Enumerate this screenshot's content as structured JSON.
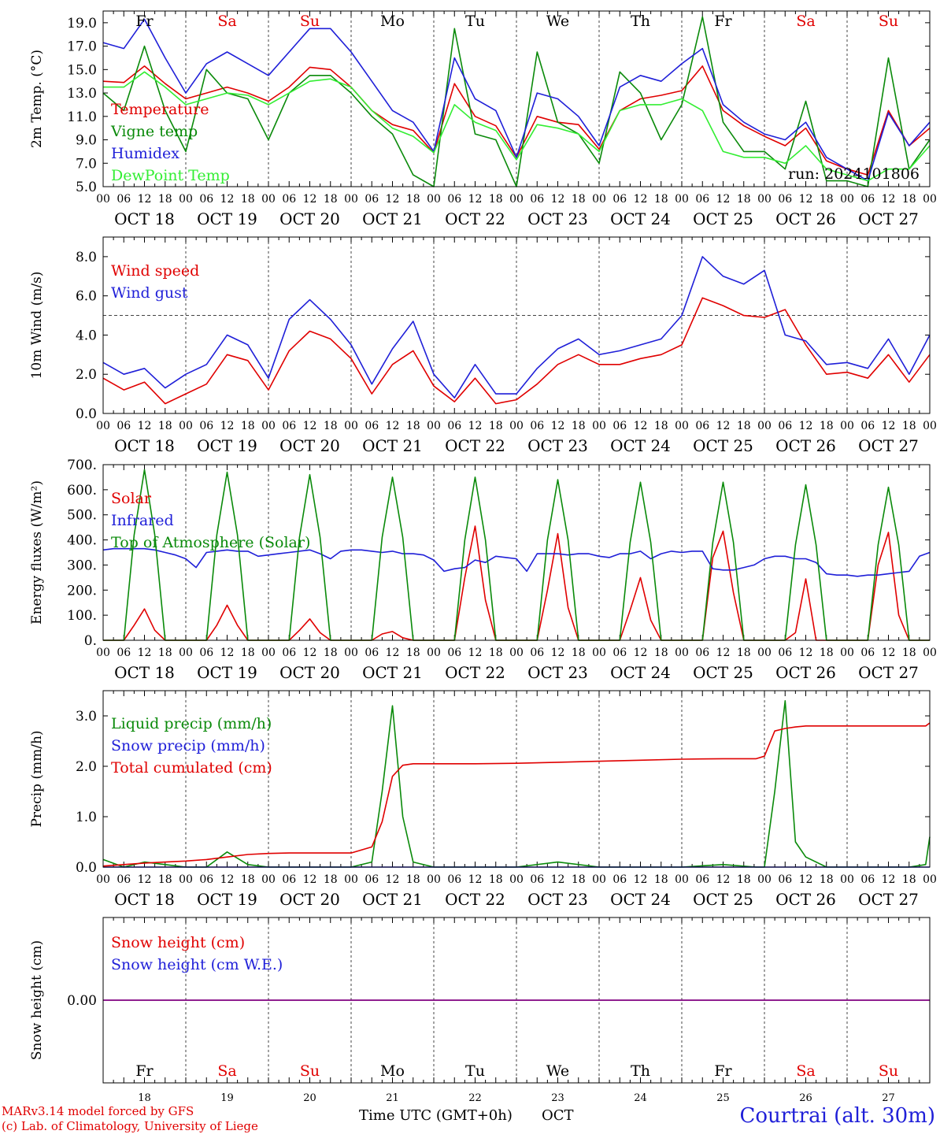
{
  "run_label": "run: 2024101806",
  "location": "Courtrai (alt. 30m)",
  "credits": [
    "MARv3.14 model forced by GFS",
    "(c) Lab. of Climatology, University of Liege"
  ],
  "xaxis_title": "Time UTC (GMT+0h)",
  "xaxis_month": "OCT",
  "day_names": [
    "Fr",
    "Sa",
    "Su",
    "Mo",
    "Tu",
    "We",
    "Th",
    "Fr",
    "Sa",
    "Su"
  ],
  "weekend": [
    false,
    true,
    true,
    false,
    false,
    false,
    false,
    false,
    true,
    true
  ],
  "date_labels": [
    "OCT 18",
    "OCT 19",
    "OCT 20",
    "OCT 21",
    "OCT 22",
    "OCT 23",
    "OCT 24",
    "OCT 25",
    "OCT 26",
    "OCT 27"
  ],
  "day_numbers": [
    "18",
    "19",
    "20",
    "21",
    "22",
    "23",
    "24",
    "25",
    "26",
    "27"
  ],
  "hour_ticks": [
    "00",
    "06",
    "12",
    "18"
  ],
  "colors": {
    "red": "#e00000",
    "green": "#0a8a0a",
    "blue": "#1f1fd8",
    "lightgreen": "#33ee33",
    "purple": "#800080",
    "grid": "#666666"
  },
  "chart_data": [
    {
      "type": "line",
      "ylabel": "2m Temp. (°C)",
      "ylim": [
        5,
        20
      ],
      "yticks": [
        "5.0",
        "7.0",
        "9.0",
        "11.0",
        "13.0",
        "15.0",
        "17.0",
        "19.0"
      ],
      "x_days": [
        0,
        0.25,
        0.5,
        0.75,
        1,
        1.25,
        1.5,
        1.75,
        2,
        2.25,
        2.5,
        2.75,
        3,
        3.25,
        3.5,
        3.75,
        4,
        4.25,
        4.5,
        4.75,
        5,
        5.25,
        5.5,
        5.75,
        6,
        6.25,
        6.5,
        6.75,
        7,
        7.25,
        7.5,
        7.75,
        8,
        8.25,
        8.5,
        8.75,
        9,
        9.25,
        9.5,
        9.75,
        10
      ],
      "series": [
        {
          "name": "Temperature",
          "color": "red",
          "values": [
            14.0,
            13.9,
            15.3,
            13.8,
            12.5,
            13.0,
            13.5,
            13.0,
            12.3,
            13.5,
            15.2,
            15.0,
            13.5,
            11.5,
            10.3,
            9.8,
            7.9,
            13.8,
            11.0,
            10.2,
            7.5,
            11.0,
            10.5,
            10.3,
            8.2,
            11.5,
            12.5,
            12.8,
            13.2,
            15.3,
            11.5,
            10.2,
            9.3,
            8.5,
            10.0,
            7.2,
            6.5,
            6.0,
            11.5,
            8.5,
            10.0
          ]
        },
        {
          "name": "Vigne temp",
          "color": "green",
          "values": [
            13.0,
            11.5,
            17.0,
            11.5,
            8.0,
            15.0,
            13.0,
            12.5,
            9.0,
            13.0,
            14.5,
            14.5,
            13.0,
            11.0,
            9.5,
            6.0,
            5.0,
            18.5,
            9.5,
            9.0,
            5.0,
            16.5,
            10.5,
            9.5,
            7.0,
            14.8,
            13.0,
            9.0,
            12.0,
            19.5,
            10.5,
            8.0,
            8.0,
            6.5,
            12.3,
            5.5,
            5.5,
            5.0,
            16.0,
            6.5,
            9.0
          ]
        },
        {
          "name": "Humidex",
          "color": "blue",
          "values": [
            17.3,
            16.8,
            19.3,
            16.0,
            13.0,
            15.5,
            16.5,
            15.5,
            14.5,
            16.5,
            18.5,
            18.5,
            16.5,
            14.0,
            11.5,
            10.5,
            8.0,
            16.0,
            12.5,
            11.5,
            7.5,
            13.0,
            12.5,
            11.0,
            8.5,
            13.5,
            14.5,
            14.0,
            15.5,
            16.8,
            12.0,
            10.5,
            9.5,
            9.0,
            10.5,
            7.5,
            6.5,
            5.5,
            11.3,
            8.5,
            10.5
          ]
        },
        {
          "name": "DewPoint Temp",
          "color": "lightgreen",
          "values": [
            13.5,
            13.5,
            14.8,
            13.5,
            12.0,
            12.5,
            13.0,
            12.8,
            12.0,
            13.0,
            14.0,
            14.2,
            13.5,
            11.5,
            10.0,
            9.3,
            7.9,
            12.0,
            10.5,
            9.8,
            7.3,
            10.3,
            10.0,
            9.5,
            8.0,
            11.5,
            12.0,
            12.0,
            12.5,
            11.5,
            8.0,
            7.5,
            7.5,
            7.0,
            8.5,
            6.5,
            6.0,
            5.5,
            6.5,
            6.5,
            8.5
          ]
        }
      ]
    },
    {
      "type": "line",
      "ylabel": "10m Wind (m/s)",
      "ylim": [
        0,
        9
      ],
      "yticks": [
        "0.0",
        "2.0",
        "4.0",
        "6.0",
        "8.0"
      ],
      "reference_line": 5.0,
      "x_days": [
        0,
        0.25,
        0.5,
        0.75,
        1,
        1.25,
        1.5,
        1.75,
        2,
        2.25,
        2.5,
        2.75,
        3,
        3.25,
        3.5,
        3.75,
        4,
        4.25,
        4.5,
        4.75,
        5,
        5.25,
        5.5,
        5.75,
        6,
        6.25,
        6.5,
        6.75,
        7,
        7.25,
        7.5,
        7.75,
        8,
        8.25,
        8.5,
        8.75,
        9,
        9.25,
        9.5,
        9.75,
        10
      ],
      "series": [
        {
          "name": "Wind speed",
          "color": "red",
          "values": [
            1.8,
            1.2,
            1.6,
            0.5,
            1.0,
            1.5,
            3.0,
            2.7,
            1.2,
            3.2,
            4.2,
            3.8,
            2.8,
            1.0,
            2.5,
            3.2,
            1.4,
            0.6,
            1.8,
            0.5,
            0.7,
            1.5,
            2.5,
            3.0,
            2.5,
            2.5,
            2.8,
            3.0,
            3.5,
            5.9,
            5.5,
            5.0,
            4.9,
            5.3,
            3.5,
            2.0,
            2.1,
            1.8,
            3.0,
            1.6,
            3.0
          ]
        },
        {
          "name": "Wind gust",
          "color": "blue",
          "values": [
            2.6,
            2.0,
            2.3,
            1.3,
            2.0,
            2.5,
            4.0,
            3.5,
            1.8,
            4.8,
            5.8,
            4.8,
            3.5,
            1.5,
            3.3,
            4.7,
            2.0,
            0.8,
            2.5,
            1.0,
            1.0,
            2.3,
            3.3,
            3.8,
            3.0,
            3.2,
            3.5,
            3.8,
            5.0,
            8.0,
            7.0,
            6.6,
            7.3,
            4.0,
            3.7,
            2.5,
            2.6,
            2.3,
            3.8,
            2.0,
            4.0
          ]
        }
      ]
    },
    {
      "type": "line",
      "ylabel": "Energy fluxes (W/m²)",
      "ylim": [
        0,
        700
      ],
      "yticks": [
        "0.",
        "100.",
        "200.",
        "300.",
        "400.",
        "500.",
        "600.",
        "700."
      ],
      "x_days": [
        0,
        0.125,
        0.25,
        0.375,
        0.5,
        0.625,
        0.75,
        0.875,
        1,
        1.125,
        1.25,
        1.375,
        1.5,
        1.625,
        1.75,
        1.875,
        2,
        2.125,
        2.25,
        2.375,
        2.5,
        2.625,
        2.75,
        2.875,
        3,
        3.125,
        3.25,
        3.375,
        3.5,
        3.625,
        3.75,
        3.875,
        4,
        4.125,
        4.25,
        4.375,
        4.5,
        4.625,
        4.75,
        4.875,
        5,
        5.125,
        5.25,
        5.375,
        5.5,
        5.625,
        5.75,
        5.875,
        6,
        6.125,
        6.25,
        6.375,
        6.5,
        6.625,
        6.75,
        6.875,
        7,
        7.125,
        7.25,
        7.375,
        7.5,
        7.625,
        7.75,
        7.875,
        8,
        8.125,
        8.25,
        8.375,
        8.5,
        8.625,
        8.75,
        8.875,
        9,
        9.125,
        9.25,
        9.375,
        9.5,
        9.625,
        9.75,
        9.875,
        10
      ],
      "series": [
        {
          "name": "Solar",
          "color": "red",
          "values": [
            0,
            0,
            0,
            60,
            125,
            40,
            0,
            0,
            0,
            0,
            0,
            60,
            140,
            60,
            0,
            0,
            0,
            0,
            0,
            40,
            85,
            30,
            0,
            0,
            0,
            0,
            0,
            25,
            35,
            10,
            0,
            0,
            0,
            0,
            0,
            250,
            455,
            160,
            0,
            0,
            0,
            0,
            0,
            200,
            425,
            130,
            0,
            0,
            0,
            0,
            0,
            120,
            250,
            80,
            0,
            0,
            0,
            0,
            0,
            330,
            435,
            190,
            0,
            0,
            0,
            0,
            0,
            30,
            245,
            0,
            0,
            0,
            0,
            0,
            0,
            300,
            430,
            100,
            0,
            0,
            0
          ]
        },
        {
          "name": "Infrared",
          "color": "blue",
          "values": [
            360,
            365,
            365,
            365,
            365,
            360,
            350,
            340,
            325,
            290,
            350,
            355,
            360,
            355,
            355,
            335,
            340,
            345,
            350,
            355,
            360,
            345,
            325,
            355,
            360,
            360,
            355,
            350,
            355,
            345,
            345,
            340,
            320,
            275,
            285,
            290,
            320,
            310,
            335,
            330,
            325,
            275,
            345,
            345,
            345,
            340,
            345,
            345,
            335,
            330,
            345,
            345,
            355,
            325,
            345,
            355,
            350,
            355,
            355,
            285,
            280,
            280,
            290,
            300,
            325,
            335,
            335,
            325,
            325,
            310,
            265,
            260,
            260,
            255,
            260,
            260,
            265,
            270,
            275,
            335,
            350
          ]
        },
        {
          "name": "Top of Atmosphere (Solar)",
          "color": "green",
          "values": [
            0,
            0,
            0,
            420,
            680,
            420,
            0,
            0,
            0,
            0,
            0,
            420,
            670,
            420,
            0,
            0,
            0,
            0,
            0,
            410,
            660,
            410,
            0,
            0,
            0,
            0,
            0,
            410,
            650,
            410,
            0,
            0,
            0,
            0,
            0,
            400,
            650,
            400,
            0,
            0,
            0,
            0,
            0,
            400,
            640,
            400,
            0,
            0,
            0,
            0,
            0,
            390,
            630,
            390,
            0,
            0,
            0,
            0,
            0,
            390,
            630,
            390,
            0,
            0,
            0,
            0,
            0,
            380,
            620,
            380,
            0,
            0,
            0,
            0,
            0,
            380,
            610,
            380,
            0,
            0,
            0
          ]
        }
      ]
    },
    {
      "type": "line",
      "ylabel": "Precip (mm/h)",
      "ylim": [
        0,
        3.5
      ],
      "yticks": [
        "0.0",
        "1.0",
        "2.0",
        "3.0"
      ],
      "x_days": [
        0,
        0.25,
        0.5,
        0.75,
        1,
        1.25,
        1.5,
        1.75,
        2,
        2.25,
        2.5,
        2.75,
        3,
        3.25,
        3.375,
        3.5,
        3.625,
        3.75,
        4,
        4.5,
        5,
        5.5,
        6,
        6.5,
        7,
        7.5,
        7.9,
        8,
        8.125,
        8.25,
        8.375,
        8.5,
        8.75,
        9,
        9.25,
        9.5,
        9.75,
        9.95,
        10
      ],
      "series": [
        {
          "name": "Liquid precip (mm/h)",
          "color": "green",
          "values": [
            0.15,
            0.0,
            0.1,
            0.05,
            0.0,
            0.0,
            0.3,
            0.05,
            0.0,
            0.0,
            0.0,
            0.0,
            0.0,
            0.1,
            1.5,
            3.2,
            1.0,
            0.1,
            0.0,
            0.0,
            0.0,
            0.1,
            0.0,
            0.0,
            0.0,
            0.05,
            0.0,
            0.0,
            1.5,
            3.3,
            0.5,
            0.2,
            0.0,
            0.0,
            0.0,
            0.0,
            0.0,
            0.05,
            0.6
          ]
        },
        {
          "name": "Snow precip (mm/h)",
          "color": "blue",
          "values": [
            0,
            0,
            0,
            0,
            0,
            0,
            0,
            0,
            0,
            0,
            0,
            0,
            0,
            0,
            0,
            0,
            0,
            0,
            0,
            0,
            0,
            0,
            0,
            0,
            0,
            0,
            0,
            0,
            0,
            0,
            0,
            0,
            0,
            0,
            0,
            0,
            0,
            0,
            0
          ]
        },
        {
          "name": "Total cumulated (cm)",
          "color": "red",
          "values": [
            0.02,
            0.05,
            0.08,
            0.1,
            0.12,
            0.15,
            0.2,
            0.25,
            0.27,
            0.28,
            0.28,
            0.28,
            0.28,
            0.4,
            0.9,
            1.8,
            2.02,
            2.05,
            2.05,
            2.05,
            2.06,
            2.08,
            2.1,
            2.12,
            2.14,
            2.15,
            2.15,
            2.2,
            2.7,
            2.75,
            2.78,
            2.8,
            2.8,
            2.8,
            2.8,
            2.8,
            2.8,
            2.8,
            2.86
          ]
        }
      ]
    },
    {
      "type": "line",
      "ylabel": "Snow height (cm)",
      "ylim": [
        -1,
        1
      ],
      "yticks": [
        "0.00"
      ],
      "x_days": [
        0,
        10
      ],
      "series": [
        {
          "name": "Snow height (cm)",
          "color": "red",
          "values": [
            0,
            0
          ]
        },
        {
          "name": "Snow height (cm W.E.)",
          "color": "blue",
          "values": [
            0,
            0
          ]
        }
      ]
    }
  ]
}
